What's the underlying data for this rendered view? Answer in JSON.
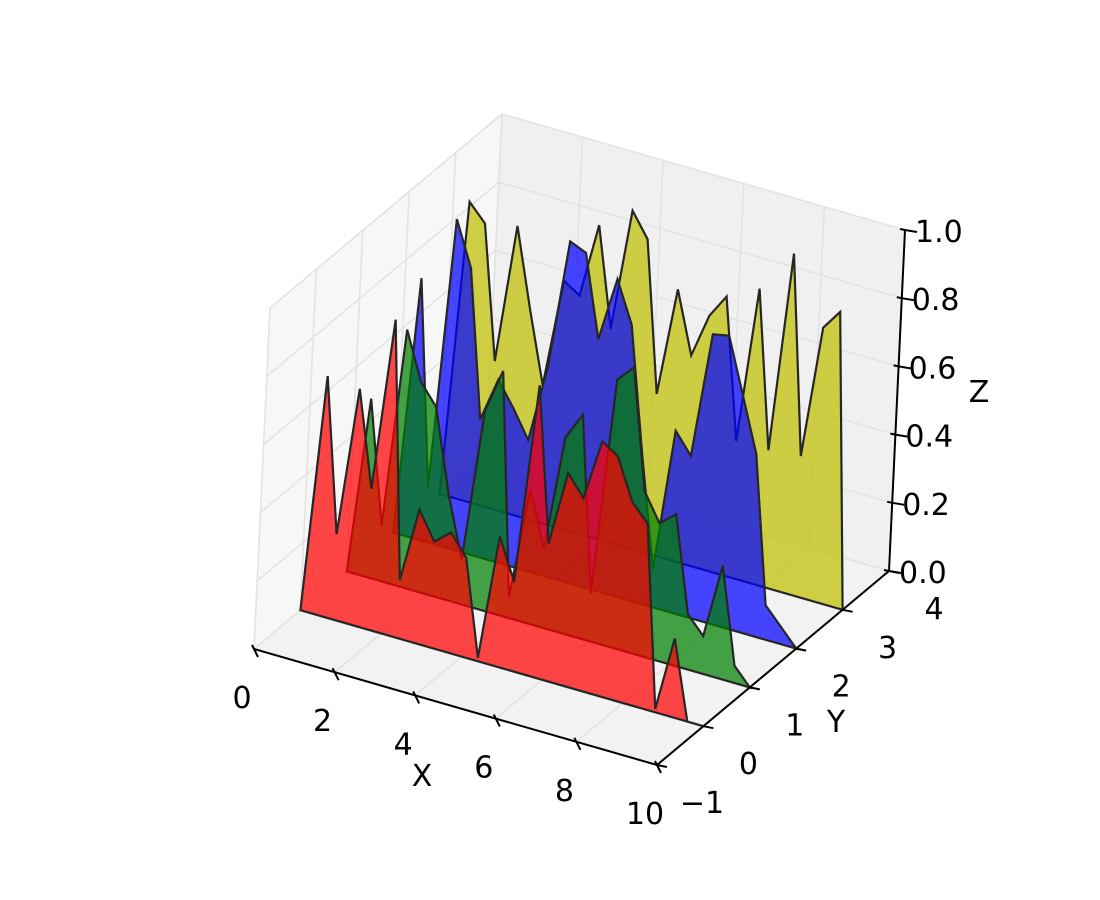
{
  "chart_data": {
    "type": "polygon3d",
    "xlabel": "X",
    "ylabel": "Y",
    "zlabel": "Z",
    "xlim": [
      0,
      10
    ],
    "ylim": [
      -1,
      4
    ],
    "zlim": [
      0,
      1
    ],
    "x_ticks": [
      "0",
      "2",
      "4",
      "6",
      "8",
      "10"
    ],
    "y_ticks": [
      "−1",
      "0",
      "1",
      "2",
      "3",
      "4"
    ],
    "z_ticks": [
      "0.0",
      "0.2",
      "0.4",
      "0.6",
      "0.8",
      "1.0"
    ],
    "grid": true,
    "x": [
      0,
      0.4,
      0.8,
      1.2,
      1.6,
      2.0,
      2.4,
      2.8,
      3.2,
      3.6,
      4.0,
      4.4,
      4.8,
      5.2,
      5.6,
      6.0,
      6.4,
      6.8,
      7.2,
      7.6,
      8.0,
      8.4,
      8.8,
      9.2,
      9.6,
      10.0
    ],
    "series": [
      {
        "y": 0,
        "color": "#ff0000",
        "values": [
          0.0,
          0.7,
          0.25,
          0.69,
          0.41,
          0.92,
          0.17,
          0.39,
          0.31,
          0.35,
          0.29,
          0.01,
          0.38,
          0.26,
          0.85,
          0.4,
          0.62,
          0.56,
          0.74,
          0.71,
          0.59,
          0.54,
          0.01,
          0.23,
          0.0,
          0.0
        ]
      },
      {
        "y": 1,
        "color": "#008000",
        "values": [
          0.0,
          0.52,
          0.16,
          0.75,
          0.61,
          0.55,
          0.31,
          0.13,
          0.58,
          0.71,
          0.06,
          0.39,
          0.23,
          0.57,
          0.65,
          0.14,
          0.78,
          0.83,
          0.48,
          0.4,
          0.44,
          0.16,
          0.11,
          0.33,
          0.05,
          0.0
        ]
      },
      {
        "y": 2,
        "color": "#0000ff",
        "values": [
          0.0,
          0.76,
          0.16,
          0.96,
          0.83,
          0.4,
          0.53,
          0.46,
          0.38,
          0.61,
          0.99,
          0.97,
          0.73,
          0.92,
          0.8,
          0.44,
          0.11,
          0.53,
          0.47,
          0.84,
          0.85,
          0.69,
          0.53,
          0.1,
          0.05,
          0.0
        ]
      },
      {
        "y": 3,
        "color": "#bfbf00",
        "values": [
          0.0,
          0.87,
          0.82,
          0.43,
          0.84,
          0.61,
          0.4,
          0.72,
          0.69,
          0.91,
          0.62,
          0.98,
          0.91,
          0.47,
          0.79,
          0.61,
          0.74,
          0.81,
          0.4,
          0.86,
          0.4,
          0.99,
          0.41,
          0.8,
          0.86,
          0.0
        ]
      }
    ]
  }
}
